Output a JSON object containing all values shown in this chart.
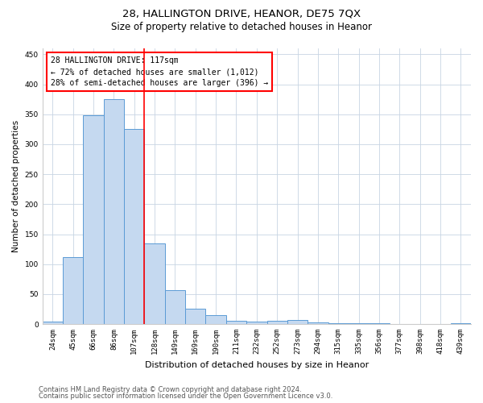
{
  "title1": "28, HALLINGTON DRIVE, HEANOR, DE75 7QX",
  "title2": "Size of property relative to detached houses in Heanor",
  "xlabel": "Distribution of detached houses by size in Heanor",
  "ylabel": "Number of detached properties",
  "categories": [
    "24sqm",
    "45sqm",
    "66sqm",
    "86sqm",
    "107sqm",
    "128sqm",
    "149sqm",
    "169sqm",
    "190sqm",
    "211sqm",
    "232sqm",
    "252sqm",
    "273sqm",
    "294sqm",
    "315sqm",
    "335sqm",
    "356sqm",
    "377sqm",
    "398sqm",
    "418sqm",
    "439sqm"
  ],
  "values": [
    4,
    112,
    348,
    375,
    325,
    135,
    57,
    25,
    15,
    5,
    4,
    5,
    7,
    3,
    2,
    2,
    1,
    0,
    0,
    0,
    2
  ],
  "bar_color": "#c5d9f0",
  "bar_edge_color": "#5b9bd5",
  "red_line_x": 4.5,
  "annotation_line1": "28 HALLINGTON DRIVE: 117sqm",
  "annotation_line2": "← 72% of detached houses are smaller (1,012)",
  "annotation_line3": "28% of semi-detached houses are larger (396) →",
  "footer1": "Contains HM Land Registry data © Crown copyright and database right 2024.",
  "footer2": "Contains public sector information licensed under the Open Government Licence v3.0.",
  "ylim": [
    0,
    460
  ],
  "yticks": [
    0,
    50,
    100,
    150,
    200,
    250,
    300,
    350,
    400,
    450
  ],
  "figsize": [
    6.0,
    5.0
  ],
  "dpi": 100,
  "background_color": "#ffffff",
  "grid_color": "#c8d4e3",
  "title1_fontsize": 9.5,
  "title2_fontsize": 8.5,
  "xlabel_fontsize": 8,
  "ylabel_fontsize": 7.5,
  "tick_fontsize": 6.5,
  "annotation_fontsize": 7,
  "footer_fontsize": 6
}
